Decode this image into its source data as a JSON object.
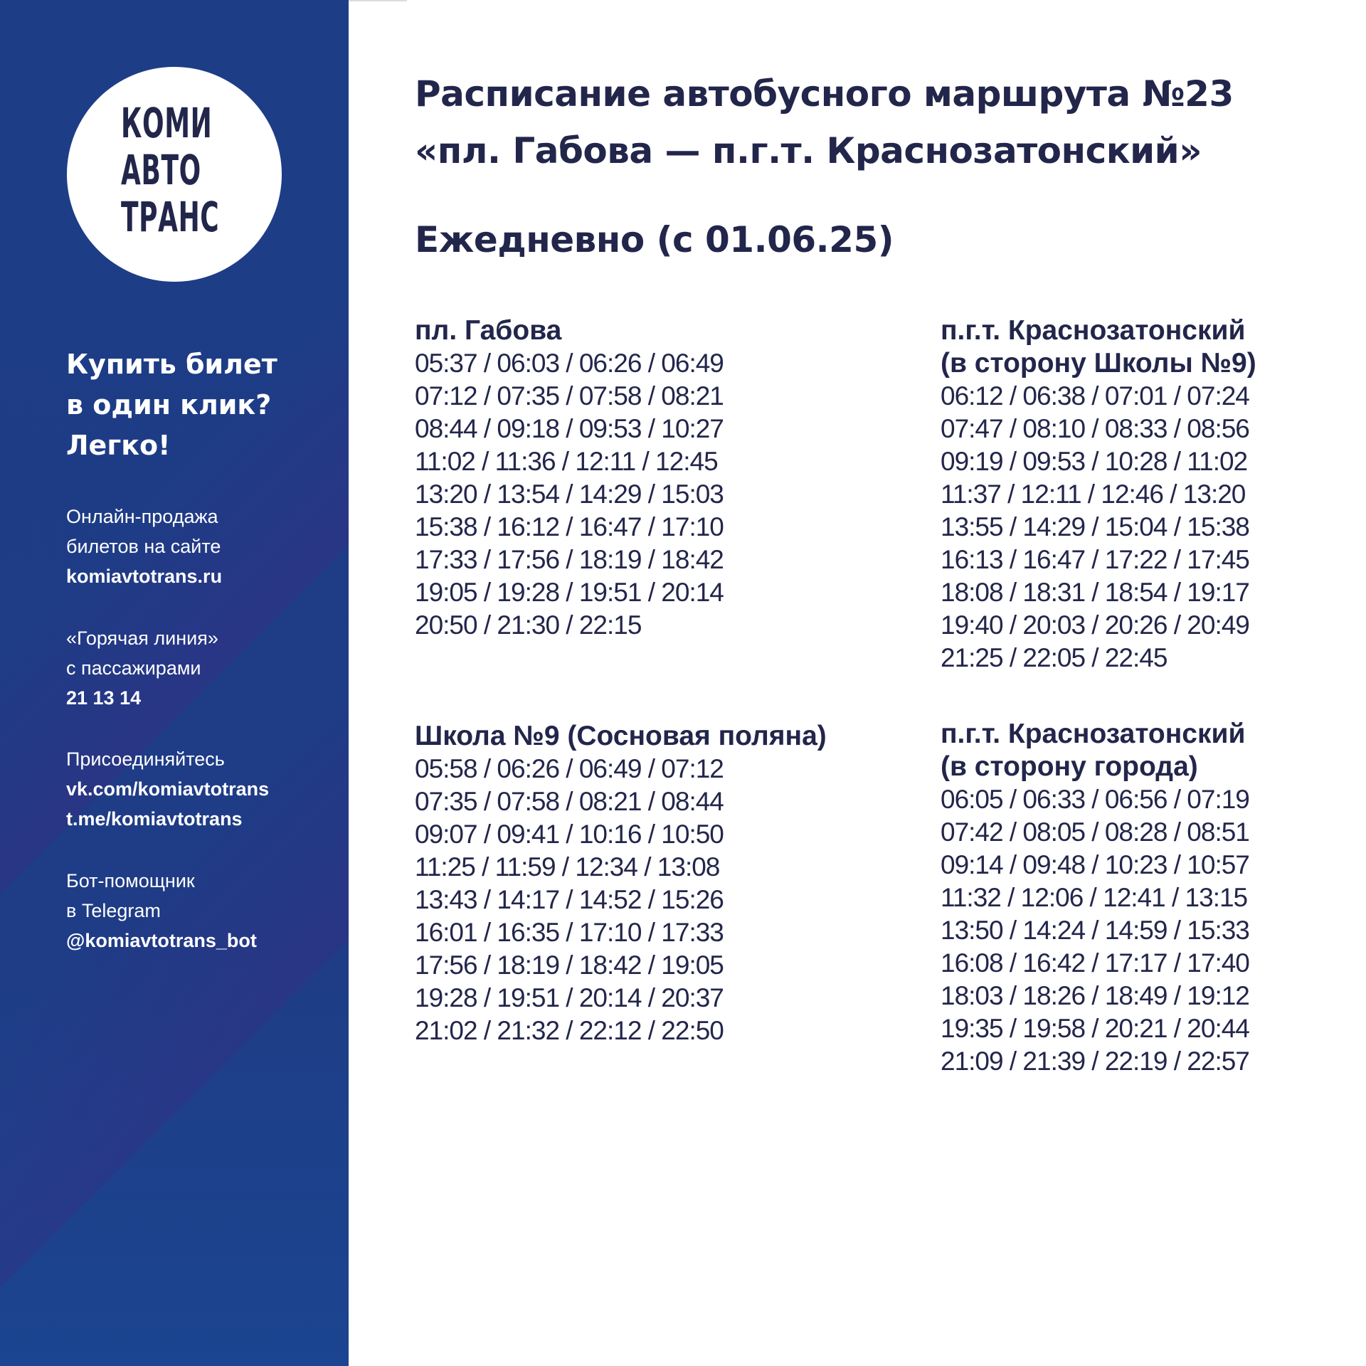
{
  "brand": {
    "logo_lines": [
      "КОМИ",
      "АВТО",
      "ТРАНС"
    ],
    "colors": {
      "sidebar": "#1e3d87",
      "text": "#23264b",
      "background": "#ffffff"
    }
  },
  "sidebar": {
    "promo": "Купить билет\nв один клик?\nЛегко!",
    "online": {
      "line1": "Онлайн-продажа",
      "line2": "билетов на сайте",
      "link": "komiavtotrans.ru"
    },
    "hotline": {
      "line1": "«Горячая линия»",
      "line2": "с пассажирами",
      "phone": "21 13 14"
    },
    "social": {
      "line1": "Присоединяйтесь",
      "vk": "vk.com/komiavtotrans",
      "tg": "t.me/komiavtotrans"
    },
    "bot": {
      "line1": "Бот-помощник",
      "line2": "в Telegram",
      "handle": "@komiavtotrans_bot"
    }
  },
  "header": {
    "title_line1": "Расписание автобусного маршрута №23",
    "title_line2": "«пл. Габова — п.г.т. Краснозатонский»",
    "subtitle": "Ежедневно (с 01.06.25)"
  },
  "schedules": [
    {
      "heading": [
        "пл. Габова"
      ],
      "rows": [
        "05:37 / 06:03 / 06:26 / 06:49",
        "07:12 / 07:35 / 07:58 / 08:21",
        "08:44 / 09:18 / 09:53 / 10:27",
        "11:02 / 11:36 / 12:11 / 12:45",
        "13:20 / 13:54 / 14:29 / 15:03",
        "15:38 / 16:12 / 16:47 / 17:10",
        "17:33 / 17:56 / 18:19 / 18:42",
        "19:05 / 19:28 / 19:51 / 20:14",
        "20:50 / 21:30 / 22:15"
      ]
    },
    {
      "heading": [
        "п.г.т. Краснозатонский",
        "(в сторону Школы №9)"
      ],
      "rows": [
        "06:12 / 06:38 / 07:01 / 07:24",
        "07:47 / 08:10 / 08:33 / 08:56",
        "09:19 / 09:53 / 10:28 / 11:02",
        "11:37 / 12:11 / 12:46 / 13:20",
        "13:55 / 14:29 / 15:04 / 15:38",
        "16:13 / 16:47 / 17:22 / 17:45",
        "18:08 / 18:31 / 18:54 / 19:17",
        "19:40 / 20:03 / 20:26 / 20:49",
        "21:25 / 22:05 / 22:45"
      ]
    },
    {
      "heading": [
        "Школа №9 (Сосновая поляна)"
      ],
      "rows": [
        "05:58 / 06:26 / 06:49 / 07:12",
        "07:35 / 07:58 / 08:21 / 08:44",
        "09:07 / 09:41 / 10:16 / 10:50",
        "11:25 / 11:59 / 12:34 / 13:08",
        "13:43 / 14:17 / 14:52 / 15:26",
        "16:01 / 16:35 / 17:10 / 17:33",
        "17:56 / 18:19 / 18:42 / 19:05",
        "19:28 / 19:51 / 20:14 / 20:37",
        "21:02 / 21:32 / 22:12 / 22:50"
      ]
    },
    {
      "heading": [
        "п.г.т. Краснозатонский",
        "(в сторону города)"
      ],
      "rows": [
        "06:05 / 06:33 / 06:56 / 07:19",
        "07:42 / 08:05 / 08:28 / 08:51",
        "09:14 / 09:48 / 10:23 / 10:57",
        "11:32 / 12:06 / 12:41 / 13:15",
        "13:50 / 14:24 / 14:59 / 15:33",
        "16:08 / 16:42 / 17:17 / 17:40",
        "18:03 / 18:26 / 18:49 / 19:12",
        "19:35 / 19:58 / 20:21 / 20:44",
        "21:09 / 21:39 / 22:19 / 22:57"
      ]
    }
  ]
}
